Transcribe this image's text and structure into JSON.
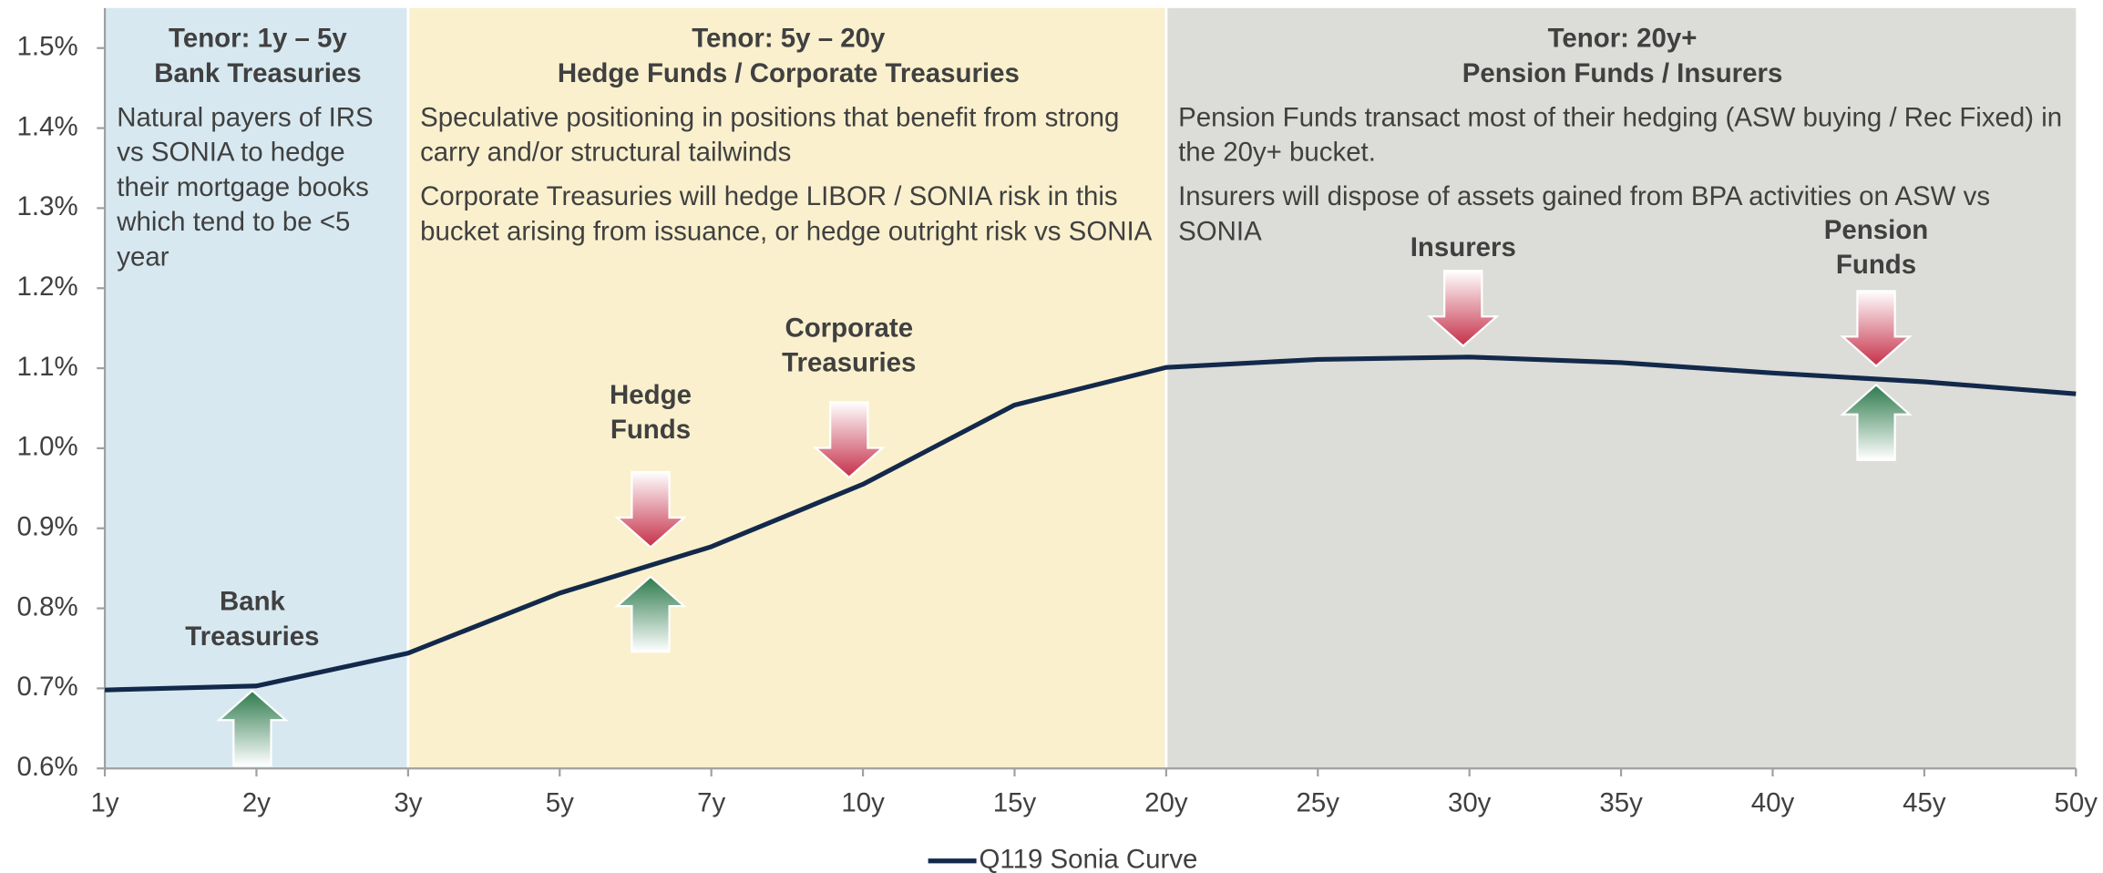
{
  "chart_data": {
    "type": "line",
    "categories": [
      "1y",
      "2y",
      "3y",
      "5y",
      "7y",
      "10y",
      "15y",
      "20y",
      "25y",
      "30y",
      "35y",
      "40y",
      "45y",
      "50y"
    ],
    "series": [
      {
        "name": "Q119 Sonia Curve",
        "color": "#13294b",
        "values": [
          0.698,
          0.703,
          0.744,
          0.819,
          0.877,
          0.955,
          1.054,
          1.101,
          1.111,
          1.114,
          1.107,
          1.094,
          1.083,
          1.068
        ]
      }
    ],
    "ylim": [
      0.6,
      1.55
    ],
    "yticks": [
      {
        "value": 0.6,
        "label": "0.6%"
      },
      {
        "value": 0.7,
        "label": "0.7%"
      },
      {
        "value": 0.8,
        "label": "0.8%"
      },
      {
        "value": 0.9,
        "label": "0.9%"
      },
      {
        "value": 1.0,
        "label": "1.0%"
      },
      {
        "value": 1.1,
        "label": "1.1%"
      },
      {
        "value": 1.2,
        "label": "1.2%"
      },
      {
        "value": 1.3,
        "label": "1.3%"
      },
      {
        "value": 1.4,
        "label": "1.4%"
      },
      {
        "value": 1.5,
        "label": "1.5%"
      }
    ],
    "legend": "bottom",
    "regions": [
      {
        "title": "Tenor: 1y – 5y",
        "subtitle": "Bank Treasuries",
        "color": "#d7e8f0",
        "paragraphs": [
          "Natural payers of IRS vs SONIA to hedge their mortgage books which tend to be <5 year"
        ]
      },
      {
        "title": "Tenor: 5y – 20y",
        "subtitle": "Hedge Funds / Corporate Treasuries",
        "color": "#faf0cd",
        "paragraphs": [
          "Speculative positioning in positions that benefit from strong carry and/or structural tailwinds",
          "Corporate Treasuries will hedge LIBOR / SONIA risk in this bucket arising from issuance, or hedge outright risk vs SONIA"
        ]
      },
      {
        "title": "Tenor: 20y+",
        "subtitle": "Pension Funds / Insurers",
        "color": "#dcdcd8",
        "paragraphs": [
          "Pension Funds transact most of their hedging (ASW buying / Rec Fixed) in the 20y+ bucket.",
          "Insurers will dispose of assets gained from BPA activities on ASW vs SONIA"
        ]
      }
    ],
    "annotations": [
      "Bank Treasuries",
      "Hedge Funds",
      "Corporate Treasuries",
      "Insurers",
      "Pension Funds"
    ]
  }
}
